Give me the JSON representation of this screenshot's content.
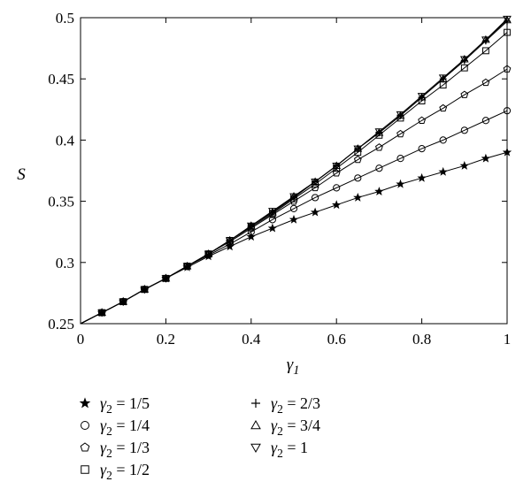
{
  "chart_data": {
    "type": "line",
    "xlabel": "γ1",
    "ylabel": "S",
    "xlim": [
      0,
      1
    ],
    "ylim": [
      0.25,
      0.5
    ],
    "xticks": [
      "0",
      "0.2",
      "0.4",
      "0.6",
      "0.8",
      "1"
    ],
    "yticks": [
      "0.25",
      "0.3",
      "0.35",
      "0.4",
      "0.45",
      "0.5"
    ],
    "grid": false,
    "legend_position": "bottom",
    "x": [
      0.05,
      0.1,
      0.15,
      0.2,
      0.25,
      0.3,
      0.35,
      0.4,
      0.45,
      0.5,
      0.55,
      0.6,
      0.65,
      0.7,
      0.75,
      0.8,
      0.85,
      0.9,
      0.95,
      1.0
    ],
    "series": [
      {
        "name": "γ2 = 1/5",
        "marker": "star",
        "values": [
          0.259,
          0.268,
          0.278,
          0.287,
          0.296,
          0.305,
          0.313,
          0.321,
          0.328,
          0.335,
          0.341,
          0.347,
          0.353,
          0.358,
          0.364,
          0.369,
          0.374,
          0.379,
          0.385,
          0.39
        ]
      },
      {
        "name": "γ2 = 1/4",
        "marker": "circle",
        "values": [
          0.259,
          0.268,
          0.278,
          0.287,
          0.297,
          0.306,
          0.315,
          0.325,
          0.335,
          0.344,
          0.353,
          0.361,
          0.369,
          0.377,
          0.385,
          0.393,
          0.4,
          0.408,
          0.416,
          0.424
        ]
      },
      {
        "name": "γ2 = 1/3",
        "marker": "pentagon",
        "values": [
          0.259,
          0.268,
          0.278,
          0.287,
          0.297,
          0.307,
          0.317,
          0.328,
          0.339,
          0.35,
          0.361,
          0.373,
          0.384,
          0.394,
          0.405,
          0.416,
          0.426,
          0.437,
          0.447,
          0.458
        ]
      },
      {
        "name": "γ2 = 1/2",
        "marker": "square",
        "values": [
          0.259,
          0.268,
          0.278,
          0.287,
          0.297,
          0.307,
          0.318,
          0.329,
          0.34,
          0.352,
          0.364,
          0.377,
          0.39,
          0.404,
          0.418,
          0.432,
          0.445,
          0.459,
          0.473,
          0.488
        ]
      },
      {
        "name": "γ2 = 2/3",
        "marker": "plus",
        "values": [
          0.259,
          0.268,
          0.278,
          0.287,
          0.297,
          0.307,
          0.318,
          0.33,
          0.341,
          0.353,
          0.366,
          0.379,
          0.393,
          0.406,
          0.42,
          0.435,
          0.45,
          0.465,
          0.481,
          0.497
        ]
      },
      {
        "name": "γ2 = 3/4",
        "marker": "triangle-up",
        "values": [
          0.259,
          0.268,
          0.278,
          0.287,
          0.297,
          0.307,
          0.318,
          0.33,
          0.341,
          0.354,
          0.366,
          0.379,
          0.393,
          0.406,
          0.42,
          0.435,
          0.45,
          0.466,
          0.482,
          0.498
        ]
      },
      {
        "name": "γ2 = 1",
        "marker": "triangle-down",
        "values": [
          0.259,
          0.268,
          0.278,
          0.287,
          0.297,
          0.307,
          0.318,
          0.33,
          0.342,
          0.354,
          0.366,
          0.379,
          0.393,
          0.407,
          0.421,
          0.436,
          0.451,
          0.466,
          0.482,
          0.499
        ]
      }
    ]
  }
}
